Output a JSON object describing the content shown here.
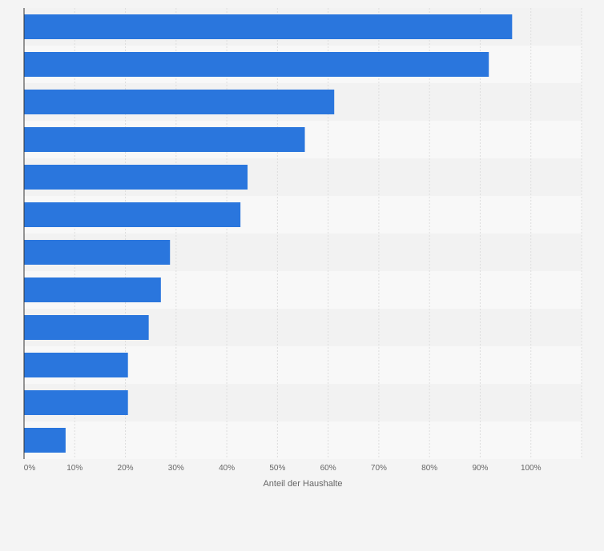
{
  "chart_data": {
    "type": "bar",
    "orientation": "horizontal",
    "title": "",
    "xlabel": "Anteil der Haushalte",
    "ylabel": "",
    "xlim": [
      0,
      110
    ],
    "x_ticks": [
      0,
      10,
      20,
      30,
      40,
      50,
      60,
      70,
      80,
      90,
      100
    ],
    "x_tick_labels": [
      "0%",
      "10%",
      "20%",
      "30%",
      "40%",
      "50%",
      "60%",
      "70%",
      "80%",
      "90%",
      "100%"
    ],
    "categories": [
      "",
      "",
      "",
      "",
      "",
      "",
      "",
      "",
      "",
      "",
      "",
      ""
    ],
    "values": [
      96.3,
      91.7,
      61.2,
      55.4,
      44.1,
      42.7,
      28.8,
      27.0,
      24.6,
      20.5,
      20.5,
      8.2
    ],
    "grid": true,
    "legend": "none",
    "colors": {
      "bar": "#2a76dd",
      "band_dark": "#f2f2f2",
      "band_light": "#f8f8f8",
      "gridline": "#dddddd",
      "axis": "#333333",
      "text": "#666666"
    }
  }
}
